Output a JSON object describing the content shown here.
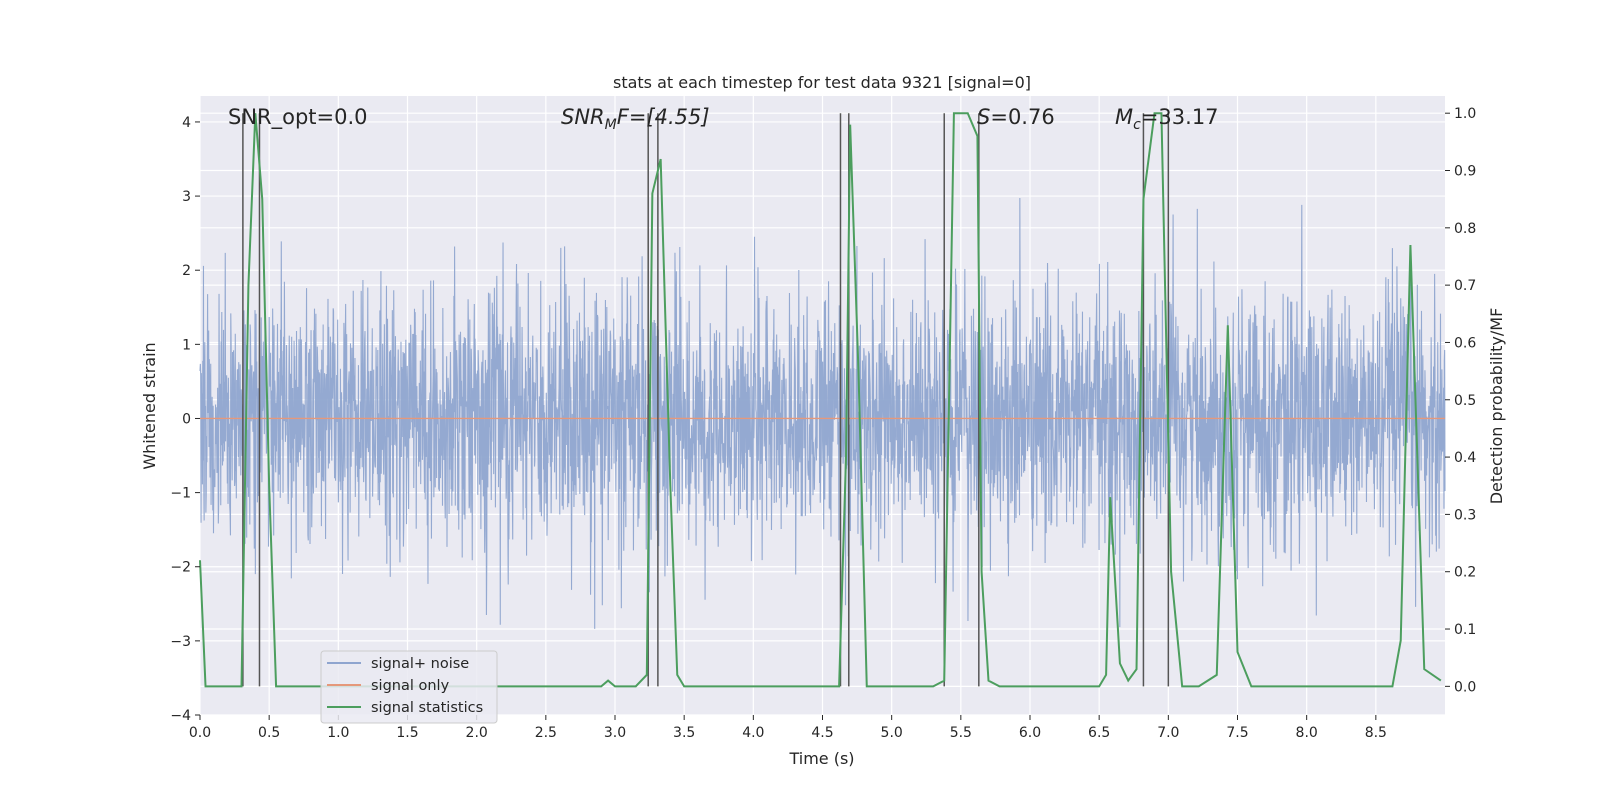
{
  "chart_data": {
    "type": "line",
    "title": "stats at each timestep for test data 9321 [signal=0]",
    "xlabel": "Time (s)",
    "ylabel": "Whitened strain",
    "ylabel_right": "Detection probability/MF",
    "xlim": [
      0.0,
      9.0
    ],
    "ylim": [
      -4.0,
      4.35
    ],
    "ylim_right": [
      -0.05,
      1.03
    ],
    "x_ticks": [
      "0.0",
      "0.5",
      "1.0",
      "1.5",
      "2.0",
      "2.5",
      "3.0",
      "3.5",
      "4.0",
      "4.5",
      "5.0",
      "5.5",
      "6.0",
      "6.5",
      "7.0",
      "7.5",
      "8.0",
      "8.5"
    ],
    "y_ticks": [
      "−4",
      "−3",
      "−2",
      "−1",
      "0",
      "1",
      "2",
      "3",
      "4"
    ],
    "y_ticks_right": [
      "0.0",
      "0.1",
      "0.2",
      "0.3",
      "0.4",
      "0.5",
      "0.6",
      "0.7",
      "0.8",
      "0.9",
      "1.0"
    ],
    "grid": true,
    "legend_position": "bottom-left",
    "annotations": {
      "snr_opt": "SNR_opt=0.0",
      "snr_mf_prefix": "SNR",
      "snr_mf_sub": "M",
      "snr_mf_suffix": "F=[4.55]",
      "s_var": "S",
      "s_value": "=0.76",
      "mc_var": "M",
      "mc_sub": "c",
      "mc_value": "=33.17"
    },
    "series": [
      {
        "name": "signal+ noise",
        "color": "#8fa5cf",
        "description_type": "whitened noise, approx. Gaussian, envelope roughly ±2.2 with spikes to ±4",
        "amplitude_envelope": 2.2,
        "max_abs": 4.0
      },
      {
        "name": "signal only",
        "color": "#e5987b",
        "x": [
          0.0,
          9.0
        ],
        "y": [
          0.0,
          0.0
        ]
      },
      {
        "name": "signal statistics",
        "color": "#4c9e5e",
        "axis": "right",
        "x": [
          0.0,
          0.04,
          0.08,
          0.15,
          0.23,
          0.3,
          0.35,
          0.4,
          0.45,
          0.5,
          0.55,
          0.6,
          1.0,
          2.0,
          2.9,
          2.95,
          3.0,
          3.15,
          3.23,
          3.27,
          3.33,
          3.4,
          3.45,
          3.5,
          4.0,
          4.5,
          4.62,
          4.67,
          4.7,
          4.76,
          4.82,
          5.0,
          5.3,
          5.38,
          5.45,
          5.55,
          5.62,
          5.65,
          5.7,
          5.78,
          6.0,
          6.5,
          6.55,
          6.58,
          6.65,
          6.71,
          6.77,
          6.82,
          6.9,
          6.95,
          7.02,
          7.1,
          7.22,
          7.35,
          7.43,
          7.5,
          7.6,
          8.0,
          8.4,
          8.62,
          8.68,
          8.75,
          8.85,
          8.97
        ],
        "y": [
          0.22,
          0.0,
          0.0,
          0.0,
          0.0,
          0.0,
          0.7,
          1.0,
          0.85,
          0.35,
          0.0,
          0.0,
          0.0,
          0.0,
          0.0,
          0.01,
          0.0,
          0.0,
          0.02,
          0.86,
          0.92,
          0.35,
          0.02,
          0.0,
          0.0,
          0.0,
          0.0,
          0.4,
          0.98,
          0.55,
          0.0,
          0.0,
          0.0,
          0.01,
          1.0,
          1.0,
          0.96,
          0.2,
          0.01,
          0.0,
          0.0,
          0.0,
          0.02,
          0.33,
          0.04,
          0.01,
          0.03,
          0.85,
          1.0,
          1.0,
          0.2,
          0.0,
          0.0,
          0.02,
          0.63,
          0.06,
          0.0,
          0.0,
          0.0,
          0.0,
          0.08,
          0.77,
          0.03,
          0.01
        ]
      }
    ],
    "vertical_lines": [
      0.31,
      0.43,
      3.24,
      3.31,
      4.63,
      4.69,
      5.38,
      5.63,
      6.82,
      7.0
    ],
    "vertical_line_range": [
      0.0,
      1.0
    ]
  }
}
